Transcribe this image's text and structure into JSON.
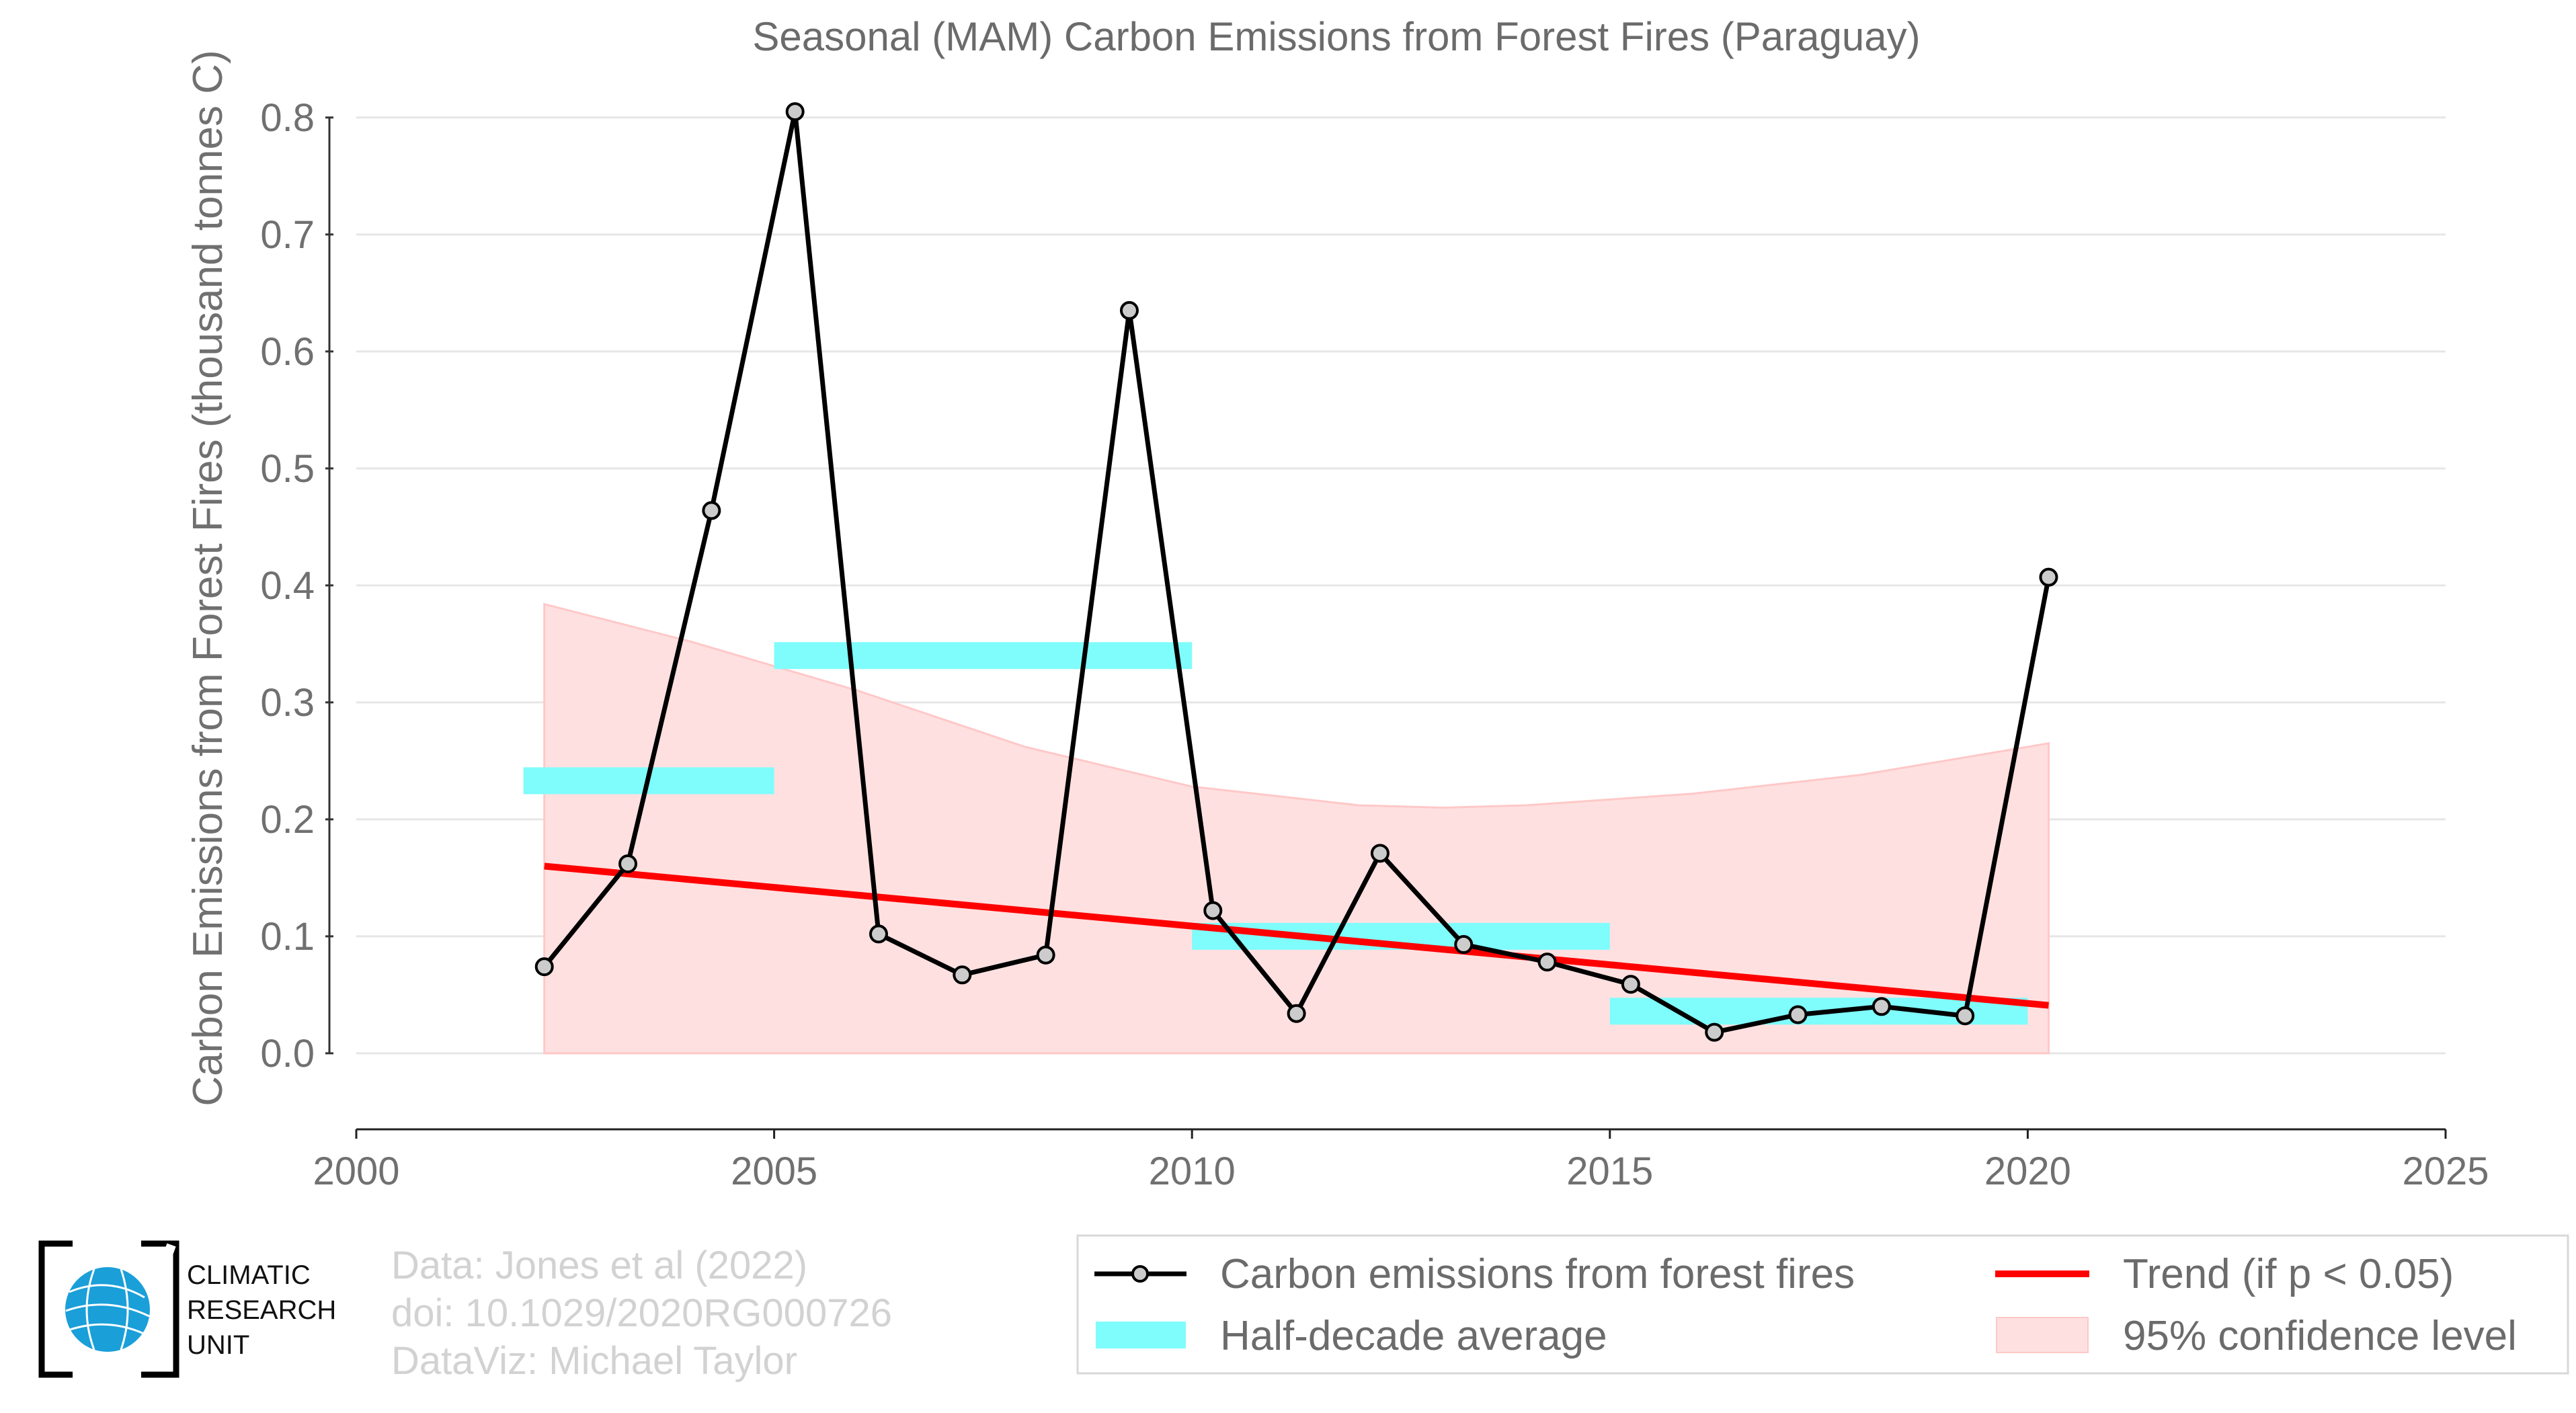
{
  "chart_data": {
    "type": "line",
    "title": "Seasonal (MAM) Carbon Emissions from Forest Fires (Paraguay)",
    "xlabel": "",
    "ylabel": "Carbon Emissions from Forest Fires (thousand tonnes C)",
    "xlim": [
      2000,
      2025
    ],
    "ylim": [
      -0.065,
      0.82
    ],
    "x_ticks": [
      "2000",
      "2005",
      "2010",
      "2015",
      "2020",
      "2025"
    ],
    "y_ticks": [
      "0.0",
      "0.1",
      "0.2",
      "0.3",
      "0.4",
      "0.5",
      "0.6",
      "0.7",
      "0.8"
    ],
    "grid": "horizontal",
    "series": [
      {
        "name": "Carbon emissions from forest fires",
        "x": [
          2002.25,
          2003.25,
          2004.25,
          2005.25,
          2006.25,
          2007.25,
          2008.25,
          2009.25,
          2010.25,
          2011.25,
          2012.25,
          2013.25,
          2014.25,
          2015.25,
          2016.25,
          2017.25,
          2018.25,
          2019.25,
          2020.25
        ],
        "y": [
          0.074,
          0.162,
          0.464,
          0.805,
          0.102,
          0.067,
          0.084,
          0.635,
          0.122,
          0.034,
          0.171,
          0.093,
          0.078,
          0.059,
          0.018,
          0.033,
          0.04,
          0.032,
          0.407
        ],
        "color": "#000000"
      },
      {
        "name": "Half-decade average",
        "segments": [
          {
            "x0": 2002,
            "x1": 2005,
            "y": 0.233
          },
          {
            "x0": 2005,
            "x1": 2010,
            "y": 0.34
          },
          {
            "x0": 2010,
            "x1": 2015,
            "y": 0.1
          },
          {
            "x0": 2015,
            "x1": 2020,
            "y": 0.036
          }
        ],
        "color": "#7ffcfc"
      },
      {
        "name": "Trend (if p < 0.05)",
        "x": [
          2002.25,
          2020.25
        ],
        "y": [
          0.16,
          0.041
        ],
        "color": "#ff0000"
      },
      {
        "name": "95% confidence level",
        "x": [
          2002.25,
          2004,
          2006,
          2008,
          2010,
          2012,
          2013,
          2014,
          2016,
          2018,
          2020.25
        ],
        "upper": [
          0.384,
          0.352,
          0.31,
          0.262,
          0.228,
          0.212,
          0.21,
          0.212,
          0.222,
          0.238,
          0.265
        ],
        "lower": [
          0,
          0,
          0,
          0,
          0,
          0,
          0,
          0,
          0,
          0,
          0
        ],
        "color": "#ffe0e0"
      }
    ],
    "legend": {
      "placement": "bottom-right",
      "entries": [
        "Carbon emissions from forest fires",
        "Trend (if p < 0.05)",
        "Half-decade average",
        "95% confidence level"
      ]
    }
  },
  "logo": {
    "line1": "CLIMATIC",
    "line2": "RESEARCH",
    "line3": "UNIT",
    "color": "#1a9fd9"
  },
  "credits": {
    "data": "Data: Jones et al (2022)",
    "doi": "doi: 10.1029/2020RG000726",
    "dataviz": "DataViz: Michael Taylor"
  }
}
